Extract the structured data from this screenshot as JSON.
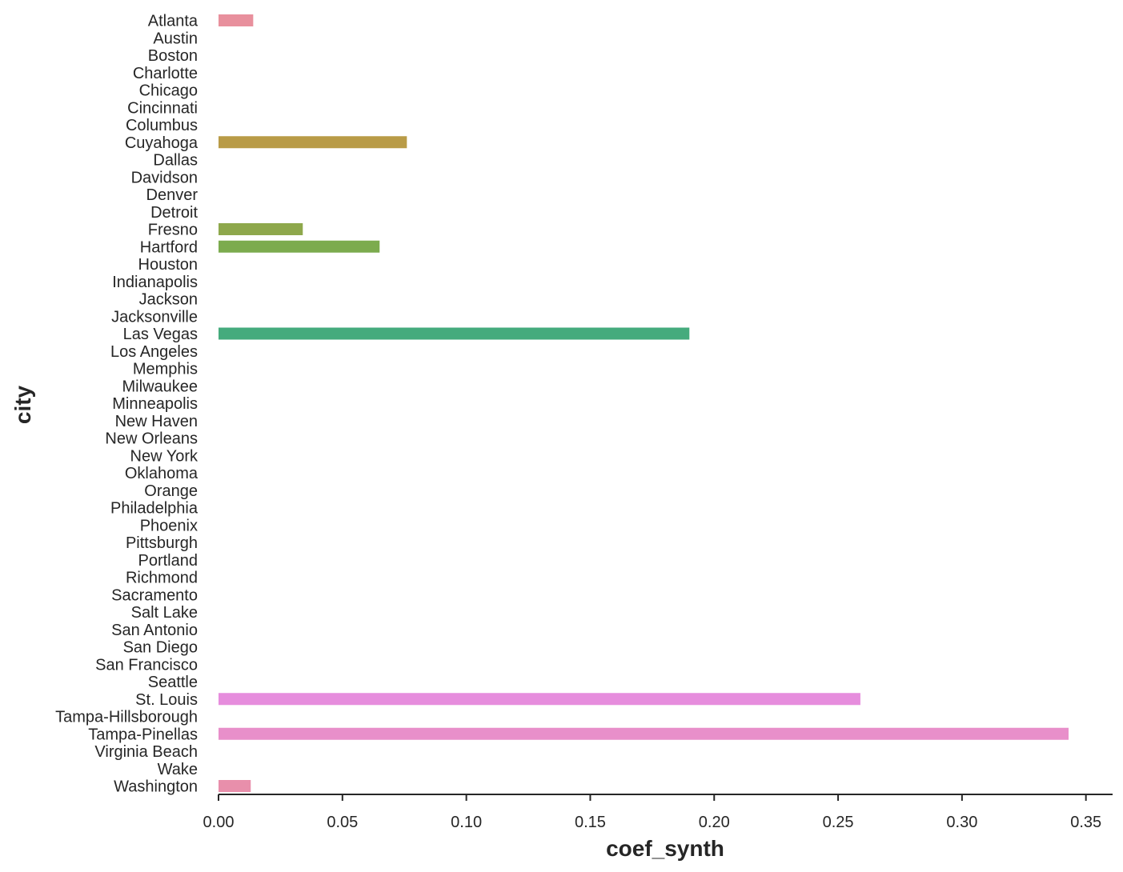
{
  "chart_data": {
    "type": "bar",
    "orientation": "horizontal",
    "xlabel": "coef_synth",
    "ylabel": "city",
    "xlim": [
      0,
      0.36
    ],
    "xticks": [
      0.0,
      0.05,
      0.1,
      0.15,
      0.2,
      0.25,
      0.3,
      0.35
    ],
    "xtick_labels": [
      "0.00",
      "0.05",
      "0.10",
      "0.15",
      "0.20",
      "0.25",
      "0.30",
      "0.35"
    ],
    "grid": false,
    "categories": [
      "Atlanta",
      "Austin",
      "Boston",
      "Charlotte",
      "Chicago",
      "Cincinnati",
      "Columbus",
      "Cuyahoga",
      "Dallas",
      "Davidson",
      "Denver",
      "Detroit",
      "Fresno",
      "Hartford",
      "Houston",
      "Indianapolis",
      "Jackson",
      "Jacksonville",
      "Las Vegas",
      "Los Angeles",
      "Memphis",
      "Milwaukee",
      "Minneapolis",
      "New Haven",
      "New Orleans",
      "New York",
      "Oklahoma",
      "Orange",
      "Philadelphia",
      "Phoenix",
      "Pittsburgh",
      "Portland",
      "Richmond",
      "Sacramento",
      "Salt Lake",
      "San Antonio",
      "San Diego",
      "San Francisco",
      "Seattle",
      "St. Louis",
      "Tampa-Hillsborough",
      "Tampa-Pinellas",
      "Virginia Beach",
      "Wake",
      "Washington"
    ],
    "values": [
      0.014,
      0,
      0,
      0,
      0,
      0,
      0,
      0.076,
      0,
      0,
      0,
      0,
      0.034,
      0.065,
      0,
      0,
      0,
      0,
      0.19,
      0,
      0,
      0,
      0,
      0,
      0,
      0,
      0,
      0,
      0,
      0,
      0,
      0,
      0,
      0,
      0,
      0,
      0,
      0,
      0,
      0.259,
      0,
      0.343,
      0,
      0,
      0.013
    ],
    "colors": [
      "#e8909d",
      "#e8919a",
      "#e39380",
      "#df9566",
      "#d89954",
      "#ce9c49",
      "#c39d45",
      "#b99b47",
      "#ae9f48",
      "#a4a244",
      "#98a542",
      "#8fa943",
      "#8ea84c",
      "#7cab4e",
      "#60ae58",
      "#4dae6b",
      "#44ad7c",
      "#45ac85",
      "#45ab7d",
      "#46ab8c",
      "#47aa9a",
      "#49a8a6",
      "#4ba7b0",
      "#4ea6bb",
      "#52a4c8",
      "#58a1d6",
      "#619de5",
      "#7397ed",
      "#8b91ed",
      "#a18bee",
      "#b386ee",
      "#c580ee",
      "#d47cea",
      "#de7ae6",
      "#e47ae2",
      "#e77cde",
      "#e87ed9",
      "#e981d5",
      "#ea84d2",
      "#e68ddd",
      "#e88dca",
      "#e88fca",
      "#e88ec0",
      "#e88eb6",
      "#e88fab"
    ]
  }
}
